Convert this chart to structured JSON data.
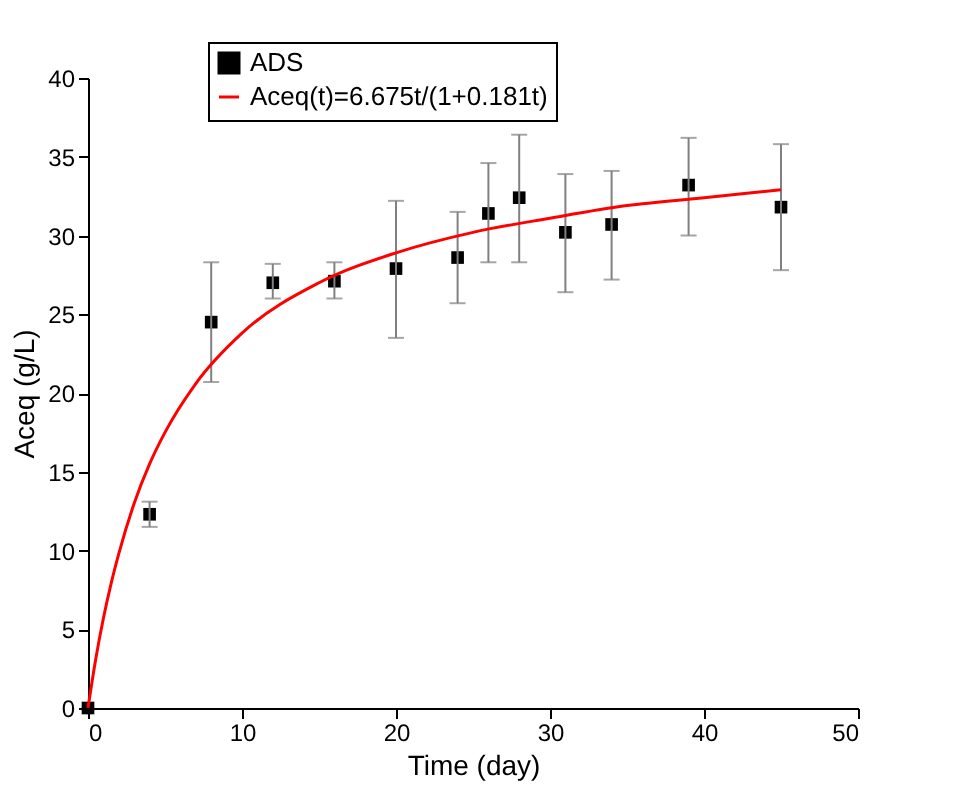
{
  "chart_data": {
    "type": "scatter",
    "xlabel": "Time (day)",
    "ylabel": "Aceq (g/L)",
    "xlim": [
      0,
      50
    ],
    "ylim": [
      0,
      40
    ],
    "xticks": [
      0,
      10,
      20,
      30,
      40,
      50
    ],
    "yticks": [
      0,
      5,
      10,
      15,
      20,
      25,
      30,
      35,
      40
    ],
    "grid": false,
    "legend": "top",
    "series": [
      {
        "name": "ADS",
        "color": "#000000",
        "marker": "square",
        "x": [
          0,
          4,
          8,
          12,
          16,
          20,
          24,
          26,
          28,
          31,
          34,
          39,
          45
        ],
        "values": [
          0,
          12.3,
          24.5,
          27,
          27.1,
          27.9,
          28.6,
          31.4,
          32.4,
          30.2,
          30.7,
          33.2,
          31.8
        ],
        "errors": [
          null,
          [
            11.5,
            13.1
          ],
          [
            20.7,
            28.3
          ],
          [
            26,
            28.2
          ],
          [
            26,
            28.3
          ],
          [
            23.5,
            32.2
          ],
          [
            25.7,
            31.5
          ],
          [
            28.3,
            34.6
          ],
          [
            28.3,
            36.4
          ],
          [
            26.4,
            33.9
          ],
          [
            27.2,
            34.1
          ],
          [
            30,
            36.2
          ],
          [
            27.8,
            35.8
          ]
        ]
      },
      {
        "name": "Aceq(t)=6.675t/(1+0.181t)",
        "color": "#ff0000",
        "type": "line",
        "line_style": "solid",
        "x": [
          0,
          0.5,
          1,
          1.5,
          2,
          3,
          4,
          5,
          7,
          10,
          15,
          20,
          25,
          30,
          35,
          40,
          45
        ],
        "values": [
          0,
          3.1,
          5.7,
          7.9,
          9.8,
          13,
          15.5,
          17.5,
          20.6,
          23.8,
          27,
          28.9,
          30.2,
          31.1,
          31.9,
          32.4,
          32.9
        ]
      }
    ]
  }
}
